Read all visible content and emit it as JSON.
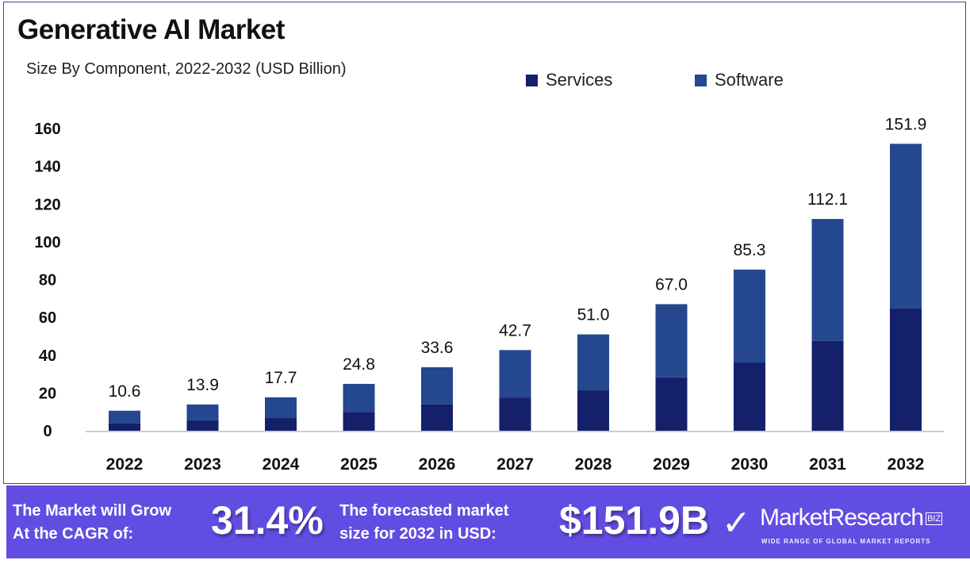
{
  "chart_data": {
    "type": "bar",
    "stacked": true,
    "title": "Generative AI Market",
    "subtitle": "Size By Component, 2022-2032 (USD Billion)",
    "categories": [
      "2022",
      "2023",
      "2024",
      "2025",
      "2026",
      "2027",
      "2028",
      "2029",
      "2030",
      "2031",
      "2032"
    ],
    "series": [
      {
        "name": "Services",
        "color": "#15206a",
        "values": [
          3.8,
          5.5,
          6.7,
          10.0,
          13.9,
          17.6,
          21.4,
          28.2,
          36.1,
          47.5,
          64.7
        ]
      },
      {
        "name": "Software",
        "color": "#24478f",
        "values": [
          6.8,
          8.4,
          11.0,
          14.8,
          19.7,
          25.1,
          29.6,
          38.8,
          49.2,
          64.6,
          87.2
        ]
      }
    ],
    "totals": [
      "10.6",
      "13.9",
      "17.7",
      "24.8",
      "33.6",
      "42.7",
      "51.0",
      "67.0",
      "85.3",
      "112.1",
      "151.9"
    ],
    "yticks": [
      "0",
      "20",
      "40",
      "60",
      "80",
      "100",
      "120",
      "140",
      "160"
    ],
    "ylim": [
      0,
      160
    ],
    "grid": false,
    "legend": "top-right"
  },
  "banner": {
    "cagr_label_1": "The Market will Grow",
    "cagr_label_2": "At the CAGR of:",
    "cagr_value": "31.4%",
    "forecast_label_1": "The forecasted market",
    "forecast_label_2": "size for 2032 in USD:",
    "forecast_value": "$151.9B",
    "brand": "MarketResearch",
    "brand_suffix": "BIZ",
    "tagline": "WIDE RANGE OF GLOBAL MARKET REPORTS",
    "color": "#624de3"
  }
}
